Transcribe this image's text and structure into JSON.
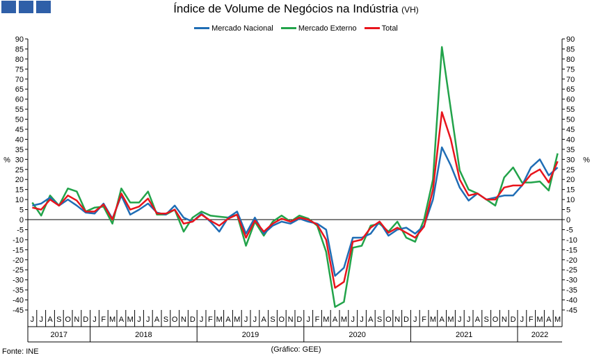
{
  "header": {
    "title": "Índice de Volume de Negócios na Indústria",
    "subtitle": "(VH)"
  },
  "footer": {
    "source": "Fonte: INE",
    "credit": "(Gráfico: GEE)"
  },
  "chart_data": {
    "type": "line",
    "title": "Índice de Volume de Negócios na Indústria (VH)",
    "ylabel_left": "%",
    "ylabel_right": "%",
    "ylim": [
      -45,
      90
    ],
    "yticks": [
      90,
      85,
      80,
      75,
      70,
      65,
      60,
      55,
      50,
      45,
      40,
      35,
      30,
      25,
      20,
      15,
      10,
      5,
      0,
      -5,
      -10,
      -15,
      -20,
      -25,
      -30,
      -35,
      -40,
      -45
    ],
    "month_labels": [
      "J",
      "J",
      "A",
      "S",
      "O",
      "N",
      "D",
      "J",
      "F",
      "M",
      "A",
      "M",
      "J",
      "J",
      "A",
      "S",
      "O",
      "N",
      "D",
      "J",
      "F",
      "M",
      "A",
      "M",
      "J",
      "J",
      "A",
      "S",
      "O",
      "N",
      "D",
      "J",
      "F",
      "M",
      "A",
      "M",
      "J",
      "J",
      "A",
      "S",
      "O",
      "N",
      "D",
      "J",
      "F",
      "M",
      "A",
      "M",
      "J",
      "J",
      "A",
      "S",
      "O",
      "N",
      "D",
      "J",
      "F",
      "M",
      "A",
      "M"
    ],
    "years": [
      {
        "label": "2017",
        "start": 0,
        "count": 7
      },
      {
        "label": "2018",
        "start": 7,
        "count": 12
      },
      {
        "label": "2019",
        "start": 19,
        "count": 12
      },
      {
        "label": "2020",
        "start": 31,
        "count": 12
      },
      {
        "label": "2021",
        "start": 43,
        "count": 12
      },
      {
        "label": "2022",
        "start": 55,
        "count": 5
      }
    ],
    "legend_position": "top-center",
    "grid": false,
    "series": [
      {
        "name": "Mercado Nacional",
        "color": "#1f6db5",
        "values": [
          7,
          8,
          11,
          7,
          10,
          7,
          3.5,
          3,
          8,
          0.5,
          12,
          2.5,
          5,
          8,
          3.5,
          2.5,
          7,
          1,
          -1,
          3,
          -1,
          -6,
          1,
          4,
          -7,
          1,
          -7,
          -3,
          -1,
          -2,
          0.5,
          -1,
          -2,
          -5,
          -28,
          -24,
          -9,
          -9,
          -7,
          -1,
          -8,
          -5,
          -4,
          -7,
          -3,
          10,
          36,
          27,
          16,
          9.5,
          13,
          10,
          11,
          12,
          12,
          17,
          26,
          30,
          22,
          26
        ]
      },
      {
        "name": "Mercado Externo",
        "color": "#22a34a",
        "values": [
          8.5,
          2,
          12,
          7,
          15.5,
          14,
          4,
          6,
          6.5,
          -2,
          15.5,
          8.5,
          8.5,
          14,
          2.5,
          2.5,
          5,
          -6,
          1,
          4,
          2,
          1.5,
          1,
          2.5,
          -13,
          -1,
          -8,
          -1,
          2,
          -1,
          2,
          0.5,
          -3,
          -16,
          -43.5,
          -41,
          -14,
          -13,
          -3,
          -2,
          -6,
          -1,
          -9,
          -11,
          0,
          20,
          86,
          55,
          24.5,
          15,
          13,
          10,
          7,
          21,
          26,
          18.5,
          18.5,
          19,
          14.5,
          33
        ]
      },
      {
        "name": "Total",
        "color": "#e8141c",
        "values": [
          6,
          5,
          10,
          7,
          12,
          9.5,
          4,
          4,
          7.5,
          0,
          13,
          5,
          6.5,
          10.5,
          3,
          3,
          5,
          -2,
          -1,
          2.5,
          -0.5,
          -3,
          0.5,
          2.5,
          -9,
          -0.5,
          -6,
          -2,
          0.5,
          -1,
          1,
          0,
          -2.5,
          -10,
          -34,
          -31,
          -11,
          -10,
          -4,
          -1,
          -6.5,
          -4,
          -6.5,
          -9,
          -3.5,
          15,
          53.5,
          40,
          20,
          12,
          13,
          10,
          10,
          16,
          17,
          17,
          22.5,
          25,
          18.5,
          29
        ]
      }
    ]
  }
}
